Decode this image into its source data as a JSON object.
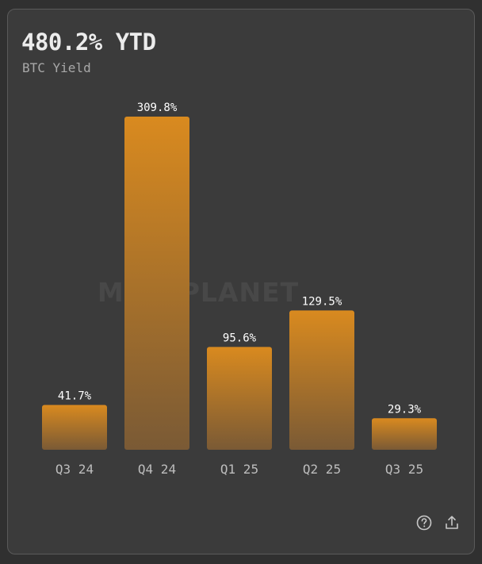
{
  "header": {
    "headline": "480.2% YTD",
    "subtitle": "BTC Yield"
  },
  "watermark": "METAPLANET",
  "colors": {
    "card_background": "#3b3b3b",
    "bar_top": "#d98a1f",
    "bar_bottom": "#7a5a35",
    "value_label": "#ffffff",
    "tick_label": "#bdbdbd"
  },
  "chart_data": {
    "type": "bar",
    "title": "480.2% YTD",
    "subtitle": "BTC Yield",
    "categories": [
      "Q3 24",
      "Q4 24",
      "Q1 25",
      "Q2 25",
      "Q3 25"
    ],
    "values": [
      41.7,
      309.8,
      95.6,
      129.5,
      29.3
    ],
    "value_labels": [
      "41.7%",
      "309.8%",
      "95.6%",
      "129.5%",
      "29.3%"
    ],
    "unit": "%",
    "ylim": [
      0,
      309.8
    ],
    "grid": false,
    "legend": "none"
  },
  "actions": [
    {
      "icon": "help-circle-icon"
    },
    {
      "icon": "share-icon"
    }
  ]
}
